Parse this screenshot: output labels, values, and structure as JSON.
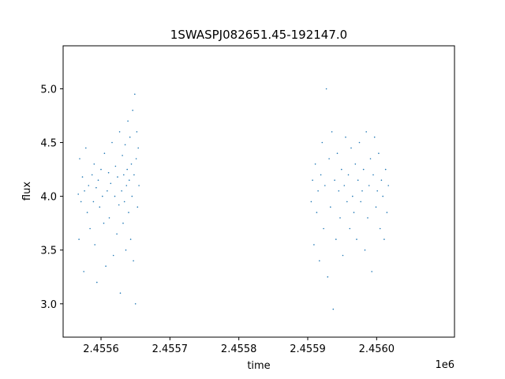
{
  "chart_data": {
    "type": "scatter",
    "title": "1SWASPJ082651.45-192147.0",
    "xlabel": "time",
    "ylabel": "flux",
    "x_offset_text": "1e6",
    "x_ticks": [
      2455600,
      2455700,
      2455800,
      2455900,
      2456000
    ],
    "x_tick_labels": [
      "2.4556",
      "2.4557",
      "2.4558",
      "2.4559",
      "2.4560"
    ],
    "y_ticks": [
      3.0,
      3.5,
      4.0,
      4.5,
      5.0
    ],
    "y_tick_labels": [
      "3.0",
      "3.5",
      "4.0",
      "4.5",
      "5.0"
    ],
    "xlim": [
      2455545,
      2456113
    ],
    "ylim": [
      2.69,
      5.4
    ],
    "grid": false,
    "series": [
      {
        "color": "#1f77b4",
        "marker": "point",
        "x": [
          2455567,
          2455568,
          2455569,
          2455571,
          2455573,
          2455575,
          2455576,
          2455578,
          2455580,
          2455582,
          2455584,
          2455587,
          2455589,
          2455590,
          2455591,
          2455593,
          2455594,
          2455596,
          2455598,
          2455600,
          2455602,
          2455604,
          2455605,
          2455607,
          2455609,
          2455611,
          2455612,
          2455614,
          2455616,
          2455618,
          2455620,
          2455621,
          2455623,
          2455624,
          2455626,
          2455627,
          2455628,
          2455630,
          2455631,
          2455632,
          2455633,
          2455634,
          2455635,
          2455636,
          2455637,
          2455638,
          2455639,
          2455640,
          2455641,
          2455642,
          2455643,
          2455644,
          2455645,
          2455646,
          2455647,
          2455648,
          2455649,
          2455650,
          2455651,
          2455652,
          2455653,
          2455654,
          2455655,
          2455905,
          2455907,
          2455909,
          2455911,
          2455913,
          2455915,
          2455917,
          2455919,
          2455921,
          2455923,
          2455925,
          2455927,
          2455929,
          2455931,
          2455933,
          2455935,
          2455937,
          2455939,
          2455941,
          2455943,
          2455945,
          2455947,
          2455949,
          2455951,
          2455953,
          2455955,
          2455957,
          2455959,
          2455961,
          2455963,
          2455965,
          2455967,
          2455969,
          2455971,
          2455973,
          2455975,
          2455977,
          2455979,
          2455981,
          2455983,
          2455985,
          2455987,
          2455989,
          2455991,
          2455993,
          2455995,
          2455997,
          2455999,
          2456001,
          2456003,
          2456005,
          2456007,
          2456009,
          2456011,
          2456013,
          2456015,
          2456017
        ],
        "y": [
          4.02,
          3.6,
          4.35,
          3.95,
          4.18,
          3.3,
          4.05,
          4.45,
          3.85,
          4.1,
          3.7,
          4.2,
          3.95,
          4.3,
          3.55,
          4.08,
          3.2,
          4.15,
          3.9,
          4.25,
          4.0,
          3.75,
          4.4,
          3.35,
          4.05,
          4.22,
          3.8,
          4.12,
          4.5,
          3.45,
          4.0,
          4.28,
          3.65,
          4.18,
          3.92,
          4.6,
          3.1,
          4.05,
          4.38,
          3.75,
          4.2,
          3.95,
          4.48,
          3.5,
          4.1,
          4.25,
          4.7,
          3.85,
          4.15,
          4.55,
          3.6,
          4.3,
          4.0,
          4.8,
          3.4,
          4.2,
          4.95,
          3.0,
          4.35,
          4.6,
          3.9,
          4.45,
          4.1,
          3.95,
          4.15,
          3.55,
          4.3,
          3.85,
          4.05,
          3.4,
          4.2,
          4.5,
          3.7,
          4.1,
          5.0,
          3.25,
          4.35,
          3.9,
          4.6,
          2.95,
          4.15,
          3.6,
          4.4,
          4.05,
          3.8,
          4.25,
          3.45,
          4.1,
          4.55,
          3.95,
          4.2,
          3.7,
          4.45,
          4.0,
          3.85,
          4.3,
          3.6,
          4.15,
          4.5,
          3.95,
          4.05,
          4.25,
          3.5,
          4.6,
          3.8,
          4.1,
          4.35,
          3.3,
          4.2,
          4.55,
          3.9,
          4.05,
          4.4,
          3.7,
          4.15,
          4.0,
          3.6,
          4.25,
          3.85,
          4.1
        ]
      }
    ]
  }
}
